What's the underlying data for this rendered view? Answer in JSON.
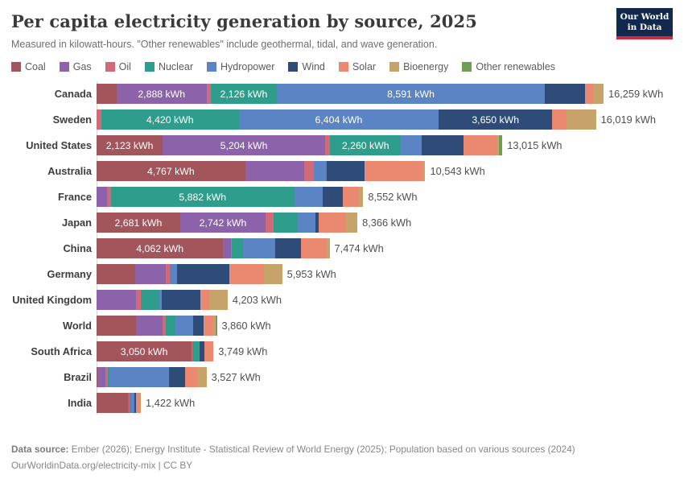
{
  "header": {
    "title": "Per capita electricity generation by source, 2025",
    "subtitle": "Measured in kilowatt-hours. \"Other renewables\" include geothermal, tidal, and wave generation."
  },
  "logo": {
    "line1": "Our World",
    "line2": "in Data"
  },
  "footer": {
    "source_label": "Data source:",
    "source_rest": " Ember (2026); Energy Institute - Statistical Review of World Energy (2025); Population based on various sources (2024)",
    "link": "OurWorldinData.org/electricity-mix",
    "license": " | CC BY"
  },
  "chart_data": {
    "type": "bar",
    "orientation": "horizontal-stacked",
    "unit": "kWh",
    "title": "Per capita electricity generation by source, 2025",
    "categories": [
      "Canada",
      "Sweden",
      "United States",
      "Australia",
      "France",
      "Japan",
      "China",
      "Germany",
      "United Kingdom",
      "World",
      "South Africa",
      "Brazil",
      "India"
    ],
    "series": [
      {
        "name": "Coal",
        "color": "#A2555B",
        "values": [
          640,
          0,
          2123,
          4767,
          0,
          2681,
          4062,
          1240,
          0,
          1255,
          3050,
          35,
          1010
        ]
      },
      {
        "name": "Gas",
        "color": "#8C62AA",
        "values": [
          2888,
          0,
          5204,
          1900,
          330,
          2742,
          260,
          980,
          1270,
          855,
          0,
          255,
          30
        ]
      },
      {
        "name": "Oil",
        "color": "#CF6A78",
        "values": [
          130,
          145,
          170,
          290,
          130,
          250,
          15,
          133,
          158,
          120,
          25,
          65,
          10
        ]
      },
      {
        "name": "Nuclear",
        "color": "#2E9D8B",
        "values": [
          2126,
          4420,
          2260,
          0,
          5882,
          770,
          370,
          0,
          590,
          300,
          200,
          70,
          40
        ]
      },
      {
        "name": "Hydropower",
        "color": "#5A84C4",
        "values": [
          8591,
          6404,
          660,
          420,
          915,
          590,
          1030,
          230,
          65,
          555,
          25,
          1900,
          130
        ]
      },
      {
        "name": "Wind",
        "color": "#2E4C77",
        "values": [
          1280,
          3650,
          1360,
          1210,
          650,
          100,
          820,
          1670,
          1240,
          340,
          170,
          520,
          52
        ]
      },
      {
        "name": "Solar",
        "color": "#EA8870",
        "values": [
          270,
          450,
          1070,
          1856,
          515,
          873,
          830,
          1110,
          290,
          330,
          279,
          390,
          120
        ]
      },
      {
        "name": "Bioenergy",
        "color": "#C7A36C",
        "values": [
          334,
          950,
          50,
          100,
          130,
          360,
          87,
          590,
          590,
          70,
          0,
          292,
          30
        ]
      },
      {
        "name": "Other renewables",
        "color": "#6E9E52",
        "values": [
          0,
          0,
          118,
          0,
          0,
          0,
          0,
          0,
          0,
          35,
          0,
          0,
          0
        ]
      }
    ],
    "totals": [
      "16,259 kWh",
      "16,019 kWh",
      "13,015 kWh",
      "10,543 kWh",
      "8,552 kWh",
      "8,366 kWh",
      "7,474 kWh",
      "5,953 kWh",
      "4,203 kWh",
      "3,860 kWh",
      "3,749 kWh",
      "3,527 kWh",
      "1,422 kWh"
    ],
    "segment_labels": [
      {
        "Gas": "2,888 kWh",
        "Nuclear": "2,126 kWh",
        "Hydropower": "8,591 kWh"
      },
      {
        "Nuclear": "4,420 kWh",
        "Hydropower": "6,404 kWh",
        "Wind": "3,650 kWh"
      },
      {
        "Coal": "2,123 kWh",
        "Gas": "5,204 kWh",
        "Nuclear": "2,260 kWh"
      },
      {
        "Coal": "4,767 kWh"
      },
      {
        "Nuclear": "5,882 kWh"
      },
      {
        "Coal": "2,681 kWh",
        "Gas": "2,742 kWh"
      },
      {
        "Coal": "4,062 kWh"
      },
      {},
      {},
      {},
      {
        "Coal": "3,050 kWh"
      },
      {},
      {}
    ],
    "xlim": [
      0,
      16300
    ],
    "grid": false,
    "legend_position": "top"
  }
}
